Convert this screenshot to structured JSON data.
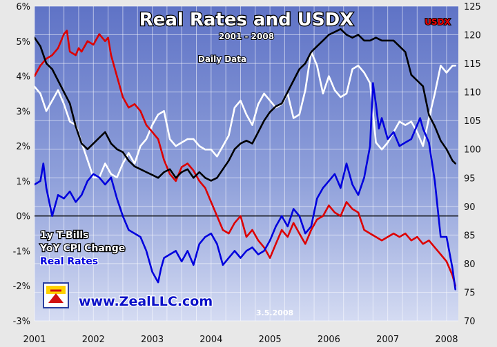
{
  "chart_data": {
    "type": "line",
    "title": "Real Rates and USDX",
    "subtitle": "2001 - 2008",
    "note": "Daily Data",
    "right_axis_label": "USDX",
    "date_stamp": "3.5.2008",
    "watermark": "www.ZealLLC.com",
    "legend_position": "left-bottom",
    "grid": true,
    "x_ticks": [
      "2001",
      "2002",
      "2003",
      "2004",
      "2005",
      "2006",
      "2007",
      "2008"
    ],
    "x_range": [
      2001.0,
      2008.2
    ],
    "y_left_range": [
      -3,
      6
    ],
    "y_left_ticks": [
      "-3%",
      "-2%",
      "-1%",
      "0%",
      "1%",
      "2%",
      "3%",
      "4%",
      "5%",
      "6%"
    ],
    "y_right_range": [
      70,
      125
    ],
    "y_right_ticks": [
      "70",
      "75",
      "80",
      "85",
      "90",
      "95",
      "100",
      "105",
      "110",
      "115",
      "120",
      "125"
    ],
    "series": [
      {
        "name": "1y T-Bills",
        "axis": "left",
        "color": "#dd0000",
        "x": [
          2001.0,
          2001.1,
          2001.2,
          2001.3,
          2001.4,
          2001.5,
          2001.55,
          2001.6,
          2001.7,
          2001.75,
          2001.8,
          2001.9,
          2002.0,
          2002.1,
          2002.2,
          2002.25,
          2002.3,
          2002.4,
          2002.5,
          2002.6,
          2002.7,
          2002.8,
          2002.9,
          2003.0,
          2003.1,
          2003.2,
          2003.3,
          2003.4,
          2003.5,
          2003.6,
          2003.7,
          2003.8,
          2003.9,
          2004.0,
          2004.1,
          2004.2,
          2004.3,
          2004.4,
          2004.5,
          2004.6,
          2004.7,
          2004.8,
          2004.9,
          2005.0,
          2005.1,
          2005.2,
          2005.3,
          2005.4,
          2005.5,
          2005.6,
          2005.7,
          2005.8,
          2005.9,
          2006.0,
          2006.1,
          2006.2,
          2006.3,
          2006.4,
          2006.5,
          2006.6,
          2006.7,
          2006.8,
          2006.9,
          2007.0,
          2007.1,
          2007.2,
          2007.3,
          2007.4,
          2007.5,
          2007.6,
          2007.7,
          2007.8,
          2007.9,
          2008.0,
          2008.1,
          2008.15
        ],
        "values": [
          4.0,
          4.3,
          4.5,
          4.6,
          4.8,
          5.2,
          5.3,
          4.7,
          4.6,
          4.8,
          4.7,
          5.0,
          4.9,
          5.2,
          5.0,
          5.1,
          4.6,
          4.0,
          3.4,
          3.1,
          3.2,
          3.0,
          2.6,
          2.4,
          2.2,
          1.6,
          1.2,
          1.0,
          1.4,
          1.5,
          1.3,
          1.0,
          0.8,
          0.4,
          0.0,
          -0.4,
          -0.5,
          -0.2,
          0.0,
          -0.6,
          -0.4,
          -0.7,
          -0.9,
          -1.2,
          -0.8,
          -0.4,
          -0.6,
          -0.2,
          -0.5,
          -0.8,
          -0.4,
          -0.1,
          0.0,
          0.3,
          0.1,
          0.0,
          0.4,
          0.2,
          0.1,
          -0.4,
          -0.5,
          -0.6,
          -0.7,
          -0.6,
          -0.5,
          -0.6,
          -0.5,
          -0.7,
          -0.6,
          -0.8,
          -0.7,
          -0.9,
          -1.1,
          -1.3,
          -1.7,
          -2.0
        ]
      },
      {
        "name": "YoY CPI Change",
        "axis": "left",
        "color": "#ffffff",
        "x": [
          2001.0,
          2001.1,
          2001.2,
          2001.3,
          2001.4,
          2001.5,
          2001.6,
          2001.7,
          2001.8,
          2001.9,
          2002.0,
          2002.1,
          2002.2,
          2002.3,
          2002.4,
          2002.5,
          2002.6,
          2002.7,
          2002.8,
          2002.9,
          2003.0,
          2003.1,
          2003.2,
          2003.3,
          2003.4,
          2003.5,
          2003.6,
          2003.7,
          2003.8,
          2003.9,
          2004.0,
          2004.1,
          2004.2,
          2004.3,
          2004.4,
          2004.5,
          2004.6,
          2004.7,
          2004.8,
          2004.9,
          2005.0,
          2005.1,
          2005.2,
          2005.3,
          2005.4,
          2005.5,
          2005.6,
          2005.7,
          2005.8,
          2005.9,
          2006.0,
          2006.1,
          2006.2,
          2006.3,
          2006.4,
          2006.5,
          2006.6,
          2006.7,
          2006.8,
          2006.9,
          2007.0,
          2007.1,
          2007.2,
          2007.3,
          2007.4,
          2007.5,
          2007.6,
          2007.7,
          2007.8,
          2007.9,
          2008.0,
          2008.1,
          2008.15
        ],
        "values": [
          3.7,
          3.5,
          3.0,
          3.3,
          3.6,
          3.2,
          2.7,
          2.6,
          2.1,
          1.6,
          1.1,
          1.1,
          1.5,
          1.2,
          1.1,
          1.5,
          1.8,
          1.5,
          2.0,
          2.2,
          2.6,
          2.9,
          3.0,
          2.2,
          2.0,
          2.1,
          2.2,
          2.2,
          2.0,
          1.9,
          1.9,
          1.7,
          2.0,
          2.3,
          3.1,
          3.3,
          2.9,
          2.6,
          3.2,
          3.5,
          3.3,
          3.1,
          3.2,
          3.5,
          2.8,
          2.9,
          3.6,
          4.7,
          4.3,
          3.5,
          4.0,
          3.6,
          3.4,
          3.5,
          4.2,
          4.3,
          4.1,
          3.8,
          2.1,
          1.9,
          2.1,
          2.4,
          2.7,
          2.6,
          2.7,
          2.4,
          2.0,
          2.8,
          3.5,
          4.3,
          4.1,
          4.3,
          4.3
        ]
      },
      {
        "name": "Real Rates",
        "axis": "left",
        "color": "#0000dd",
        "x": [
          2001.0,
          2001.1,
          2001.15,
          2001.2,
          2001.3,
          2001.4,
          2001.5,
          2001.6,
          2001.7,
          2001.8,
          2001.9,
          2002.0,
          2002.1,
          2002.2,
          2002.3,
          2002.4,
          2002.5,
          2002.6,
          2002.7,
          2002.8,
          2002.9,
          2003.0,
          2003.1,
          2003.15,
          2003.2,
          2003.3,
          2003.4,
          2003.5,
          2003.6,
          2003.7,
          2003.8,
          2003.9,
          2004.0,
          2004.1,
          2004.2,
          2004.3,
          2004.4,
          2004.5,
          2004.6,
          2004.7,
          2004.8,
          2004.9,
          2005.0,
          2005.1,
          2005.2,
          2005.3,
          2005.4,
          2005.5,
          2005.6,
          2005.7,
          2005.8,
          2005.9,
          2006.0,
          2006.1,
          2006.2,
          2006.3,
          2006.4,
          2006.5,
          2006.6,
          2006.7,
          2006.75,
          2006.8,
          2006.85,
          2006.9,
          2007.0,
          2007.1,
          2007.2,
          2007.3,
          2007.4,
          2007.5,
          2007.55,
          2007.6,
          2007.7,
          2007.8,
          2007.9,
          2008.0,
          2008.1,
          2008.15
        ],
        "values": [
          0.9,
          1.0,
          1.5,
          0.8,
          0.0,
          0.6,
          0.5,
          0.7,
          0.4,
          0.6,
          1.0,
          1.2,
          1.1,
          0.9,
          1.1,
          0.5,
          0.0,
          -0.4,
          -0.5,
          -0.6,
          -1.0,
          -1.6,
          -1.9,
          -1.5,
          -1.2,
          -1.1,
          -1.0,
          -1.3,
          -1.0,
          -1.4,
          -0.8,
          -0.6,
          -0.5,
          -0.8,
          -1.4,
          -1.2,
          -1.0,
          -1.2,
          -1.0,
          -0.9,
          -1.1,
          -1.0,
          -0.7,
          -0.3,
          0.0,
          -0.3,
          0.2,
          0.0,
          -0.5,
          -0.3,
          0.5,
          0.8,
          1.0,
          1.2,
          0.8,
          1.5,
          0.9,
          0.6,
          1.1,
          2.0,
          3.8,
          3.2,
          2.5,
          2.8,
          2.2,
          2.4,
          2.0,
          2.1,
          2.2,
          2.6,
          2.8,
          2.5,
          2.1,
          1.0,
          -0.6,
          -0.6,
          -1.5,
          -2.1
        ]
      },
      {
        "name": "USDX",
        "axis": "right",
        "color": "#000000",
        "x": [
          2001.0,
          2001.1,
          2001.2,
          2001.3,
          2001.4,
          2001.5,
          2001.6,
          2001.7,
          2001.8,
          2001.9,
          2002.0,
          2002.1,
          2002.2,
          2002.3,
          2002.4,
          2002.5,
          2002.6,
          2002.7,
          2002.8,
          2002.9,
          2003.0,
          2003.1,
          2003.2,
          2003.3,
          2003.4,
          2003.5,
          2003.6,
          2003.7,
          2003.8,
          2003.9,
          2004.0,
          2004.1,
          2004.2,
          2004.3,
          2004.4,
          2004.5,
          2004.6,
          2004.7,
          2004.8,
          2004.9,
          2005.0,
          2005.1,
          2005.2,
          2005.3,
          2005.4,
          2005.5,
          2005.6,
          2005.7,
          2005.8,
          2005.9,
          2006.0,
          2006.1,
          2006.2,
          2006.3,
          2006.4,
          2006.5,
          2006.6,
          2006.7,
          2006.8,
          2006.9,
          2007.0,
          2007.1,
          2007.2,
          2007.3,
          2007.4,
          2007.5,
          2007.6,
          2007.7,
          2007.8,
          2007.9,
          2008.0,
          2008.1,
          2008.15
        ],
        "values": [
          119.5,
          118.0,
          115.0,
          114.0,
          112.0,
          110.0,
          108.0,
          104.0,
          101.0,
          100.0,
          101.0,
          102.0,
          103.0,
          101.0,
          100.0,
          99.5,
          98.0,
          97.0,
          96.5,
          96.0,
          95.5,
          95.0,
          96.0,
          96.5,
          95.0,
          96.0,
          96.5,
          95.0,
          96.0,
          95.0,
          94.5,
          95.0,
          96.5,
          98.0,
          100.0,
          101.0,
          101.5,
          101.0,
          103.0,
          105.0,
          106.5,
          107.5,
          108.0,
          110.0,
          112.0,
          114.0,
          115.0,
          117.0,
          118.0,
          119.0,
          120.0,
          120.5,
          121.0,
          120.0,
          119.5,
          120.0,
          119.0,
          119.0,
          119.5,
          119.0,
          119.0,
          119.0,
          118.0,
          117.0,
          113.0,
          112.0,
          111.0,
          106.0,
          104.0,
          101.5,
          100.0,
          98.0,
          97.5
        ]
      }
    ]
  }
}
